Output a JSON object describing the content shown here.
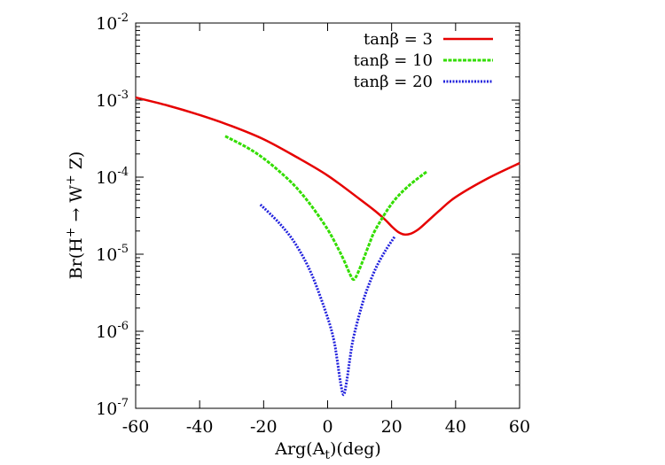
{
  "chart_data": {
    "type": "line",
    "xlabel": "Arg(A_t)(deg)",
    "ylabel": "Br(H+ → W+ Z)",
    "xlim": [
      -60,
      60
    ],
    "ylim": [
      1e-07,
      0.01
    ],
    "yscale": "log",
    "x_ticks": [
      "-60",
      "-40",
      "-20",
      "0",
      "20",
      "40",
      "60"
    ],
    "y_ticks": [
      {
        "base": "10",
        "exp": "-7"
      },
      {
        "base": "10",
        "exp": "-6"
      },
      {
        "base": "10",
        "exp": "-5"
      },
      {
        "base": "10",
        "exp": "-4"
      },
      {
        "base": "10",
        "exp": "-3"
      },
      {
        "base": "10",
        "exp": "-2"
      }
    ],
    "legend_position": "top-right",
    "series": [
      {
        "name": "tanβ = 3",
        "color": "#e60000",
        "style": "solid",
        "x": [
          -60,
          -50,
          -40,
          -30,
          -20,
          -10,
          0,
          10,
          15,
          18,
          20,
          22,
          24,
          26,
          28,
          30,
          35,
          40,
          50,
          60
        ],
        "y": [
          0.00108,
          0.00085,
          0.00064,
          0.00046,
          0.00031,
          0.000185,
          0.000105,
          5.2e-05,
          3.6e-05,
          2.8e-05,
          2.3e-05,
          1.95e-05,
          1.8e-05,
          1.85e-05,
          2.05e-05,
          2.4e-05,
          3.7e-05,
          5.5e-05,
          9.6e-05,
          0.000152
        ]
      },
      {
        "name": "tanβ = 10",
        "color": "#33dd00",
        "style": "dashed",
        "x": [
          -32,
          -25,
          -20,
          -15,
          -10,
          -5,
          0,
          3,
          5,
          7,
          8,
          9,
          11,
          13,
          15,
          20,
          25,
          31
        ],
        "y": [
          0.00034,
          0.00024,
          0.000175,
          0.000118,
          7.5e-05,
          4.2e-05,
          2.1e-05,
          1.25e-05,
          8.5e-06,
          5.5e-06,
          4.7e-06,
          5.2e-06,
          8.2e-06,
          1.35e-05,
          2.1e-05,
          4.5e-05,
          7.5e-05,
          0.000118
        ]
      },
      {
        "name": "tanβ = 20",
        "color": "#2222dd",
        "style": "dotted",
        "x": [
          -21,
          -15,
          -10,
          -5,
          0,
          2,
          3,
          4,
          5,
          6,
          7,
          8,
          10,
          12,
          15,
          18,
          21
        ],
        "y": [
          4.4e-05,
          2.5e-05,
          1.35e-05,
          5.5e-06,
          1.5e-06,
          7.5e-07,
          4.2e-07,
          2.2e-07,
          1.5e-07,
          2.3e-07,
          4.5e-07,
          8e-07,
          1.7e-06,
          3.2e-06,
          6.5e-06,
          1.1e-05,
          1.7e-05
        ]
      }
    ]
  }
}
